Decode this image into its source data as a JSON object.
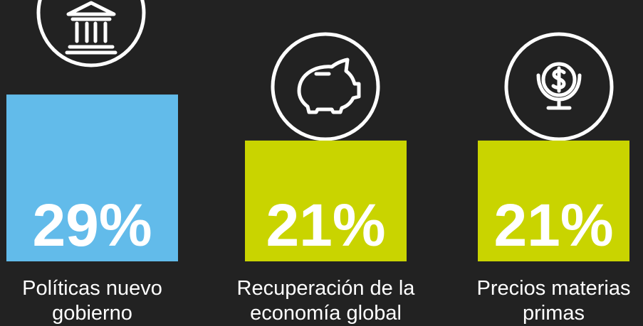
{
  "chart_data": {
    "type": "bar",
    "categories": [
      "Políticas nuevo gobierno",
      "Recuperación de la economía global",
      "Precios materias primas"
    ],
    "values": [
      29,
      21,
      21
    ],
    "value_labels": [
      "29%",
      "21%",
      "21%"
    ],
    "colors": [
      "#62bbea",
      "#c9d400",
      "#c9d400"
    ]
  }
}
